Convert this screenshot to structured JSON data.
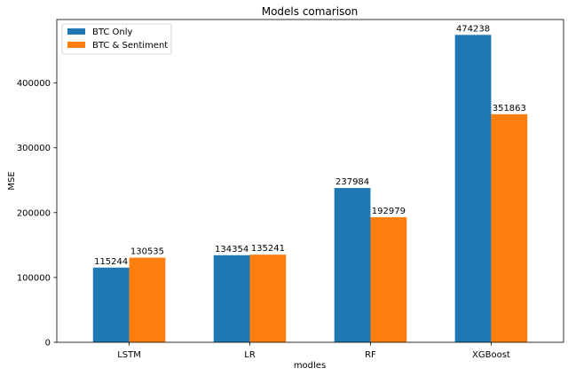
{
  "chart_data": {
    "type": "bar",
    "title": "Models comarison",
    "xlabel": "modles",
    "ylabel": "MSE",
    "categories": [
      "LSTM",
      "LR",
      "RF",
      "XGBoost"
    ],
    "series": [
      {
        "name": "BTC Only",
        "color": "#1f77b4",
        "values": [
          115244,
          134354,
          237984,
          474238
        ]
      },
      {
        "name": "BTC & Sentiment",
        "color": "#ff7f0e",
        "values": [
          130535,
          135241,
          192979,
          351863
        ]
      }
    ],
    "ylim": [
      0,
      497950
    ],
    "yticks": [
      0,
      100000,
      200000,
      300000,
      400000
    ],
    "legend_position": "top-left",
    "grid": false
  }
}
